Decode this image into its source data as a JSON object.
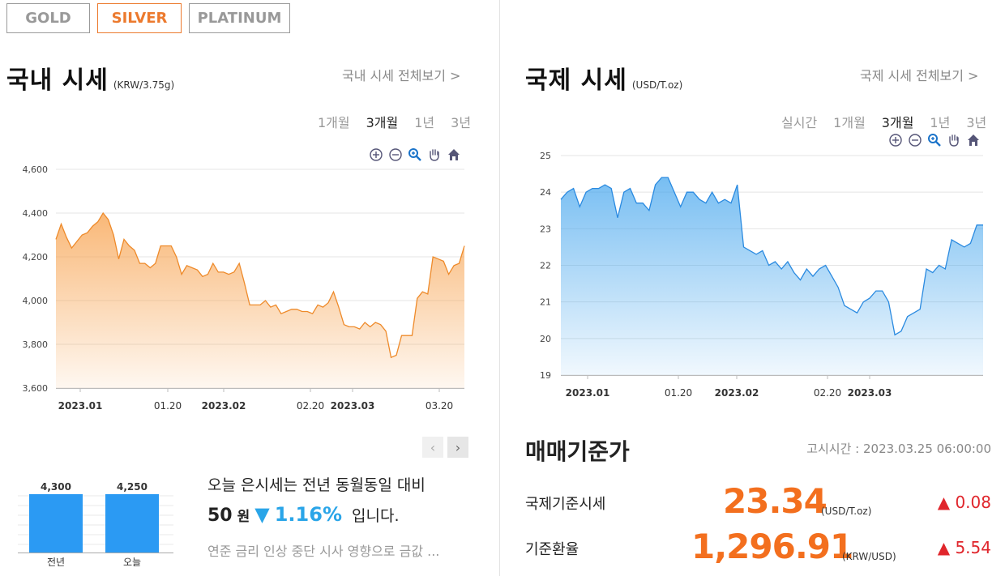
{
  "tabs": [
    {
      "label": "GOLD",
      "active": false
    },
    {
      "label": "SILVER",
      "active": true
    },
    {
      "label": "PLATINUM",
      "active": false
    }
  ],
  "domestic": {
    "title": "국내 시세",
    "unit": "(KRW/3.75g)",
    "view_all": "국내 시세 전체보기 >",
    "periods": [
      "1개월",
      "3개월",
      "1년",
      "3년"
    ],
    "active_period": "3개월",
    "tool_icons": [
      "zoom-in-icon",
      "zoom-out-icon",
      "magnifier-icon",
      "hand-icon",
      "home-icon"
    ],
    "chart_data": {
      "type": "area",
      "color": "#f7a04a",
      "ylim": [
        3600,
        4600
      ],
      "yticks": [
        "4,600",
        "4,400",
        "4,200",
        "4,000",
        "3,800",
        "3,600"
      ],
      "xticks": [
        {
          "label": "2023.01",
          "bold": true
        },
        {
          "label": "01.20",
          "bold": false
        },
        {
          "label": "2023.02",
          "bold": true
        },
        {
          "label": "02.20",
          "bold": false
        },
        {
          "label": "2023.03",
          "bold": true
        },
        {
          "label": "03.20",
          "bold": false
        }
      ],
      "values": [
        4280,
        4350,
        4290,
        4240,
        4270,
        4300,
        4310,
        4340,
        4360,
        4400,
        4370,
        4300,
        4190,
        4280,
        4250,
        4230,
        4170,
        4170,
        4150,
        4170,
        4250,
        4250,
        4250,
        4200,
        4120,
        4160,
        4150,
        4140,
        4110,
        4120,
        4170,
        4130,
        4130,
        4120,
        4130,
        4170,
        4080,
        3980,
        3980,
        3980,
        4000,
        3970,
        3980,
        3940,
        3950,
        3960,
        3960,
        3950,
        3950,
        3940,
        3980,
        3970,
        3990,
        4040,
        3970,
        3890,
        3880,
        3880,
        3870,
        3900,
        3880,
        3900,
        3890,
        3860,
        3740,
        3750,
        3840,
        3840,
        3840,
        4010,
        4040,
        4030,
        4200,
        4190,
        4180,
        4120,
        4160,
        4170,
        4250
      ]
    },
    "mini_chart": {
      "bars": [
        {
          "label": "전년",
          "value": "4,300"
        },
        {
          "label": "오늘",
          "value": "4,250"
        }
      ],
      "color": "#2b9af3"
    },
    "summary": {
      "line1": "오늘 은시세는 전년 동월동일 대비",
      "amount": "50",
      "won": "원",
      "arrow": "▼",
      "percent": "1.16%",
      "suffix": "입니다.",
      "news": "연준 금리 인상 중단 시사 영향으로 금값 ..."
    }
  },
  "international": {
    "title": "국제 시세",
    "unit": "(USD/T.oz)",
    "view_all": "국제 시세 전체보기 >",
    "periods": [
      "실시간",
      "1개월",
      "3개월",
      "1년",
      "3년"
    ],
    "active_period": "3개월",
    "tool_icons": [
      "zoom-in-icon",
      "zoom-out-icon",
      "magnifier-icon",
      "hand-icon",
      "home-icon"
    ],
    "chart_data": {
      "type": "area",
      "color": "#4aa8ee",
      "ylim": [
        19,
        25
      ],
      "yticks": [
        "25",
        "24",
        "23",
        "22",
        "21",
        "20",
        "19"
      ],
      "xticks": [
        {
          "label": "2023.01",
          "bold": true
        },
        {
          "label": "01.20",
          "bold": false
        },
        {
          "label": "2023.02",
          "bold": true
        },
        {
          "label": "02.20",
          "bold": false
        },
        {
          "label": "2023.03",
          "bold": true
        }
      ],
      "values": [
        23.8,
        24.0,
        24.1,
        23.6,
        24.0,
        24.1,
        24.1,
        24.2,
        24.1,
        23.3,
        24.0,
        24.1,
        23.7,
        23.7,
        23.5,
        24.2,
        24.4,
        24.4,
        24.0,
        23.6,
        24.0,
        24.0,
        23.8,
        23.7,
        24.0,
        23.7,
        23.8,
        23.7,
        24.2,
        22.5,
        22.4,
        22.3,
        22.4,
        22.0,
        22.1,
        21.9,
        22.1,
        21.8,
        21.6,
        21.9,
        21.7,
        21.9,
        22.0,
        21.7,
        21.4,
        20.9,
        20.8,
        20.7,
        21.0,
        21.1,
        21.3,
        21.3,
        21.0,
        20.1,
        20.2,
        20.6,
        20.7,
        20.8,
        21.9,
        21.8,
        22.0,
        21.9,
        22.7,
        22.6,
        22.5,
        22.6,
        23.1,
        23.1
      ]
    }
  },
  "reference": {
    "title": "매매기준가",
    "time": "고시시간 : 2023.03.25 06:00:00",
    "rows": [
      {
        "label": "국제기준시세",
        "value": "23.34",
        "unit": "(USD/T.oz)",
        "change": "▲ 0.08"
      },
      {
        "label": "기준환율",
        "value": "1,296.91",
        "unit": "(KRW/USD)",
        "change": "▲ 5.54"
      }
    ]
  }
}
